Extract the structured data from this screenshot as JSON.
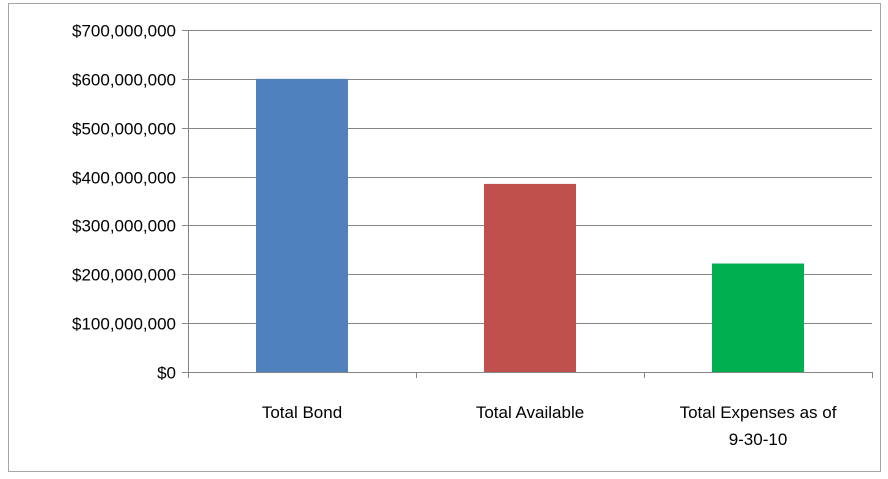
{
  "chart_data": {
    "type": "bar",
    "categories": [
      "Total Bond",
      "Total Available",
      "Total Expenses as of 9-30-10"
    ],
    "category_label_lines": [
      [
        "Total Bond"
      ],
      [
        "Total Available"
      ],
      [
        "Total Expenses as of",
        "9-30-10"
      ]
    ],
    "values": [
      600000000,
      385000000,
      222000000
    ],
    "colors": [
      "#4F81BD",
      "#C0504D",
      "#00B050"
    ],
    "ylim": [
      0,
      700000000
    ],
    "yticks": [
      0,
      100000000,
      200000000,
      300000000,
      400000000,
      500000000,
      600000000,
      700000000
    ],
    "ytick_labels": [
      "$0",
      "$100,000,000",
      "$200,000,000",
      "$300,000,000",
      "$400,000,000",
      "$500,000,000",
      "$600,000,000",
      "$700,000,000"
    ],
    "grid": true,
    "title": "",
    "xlabel": "",
    "ylabel": ""
  }
}
